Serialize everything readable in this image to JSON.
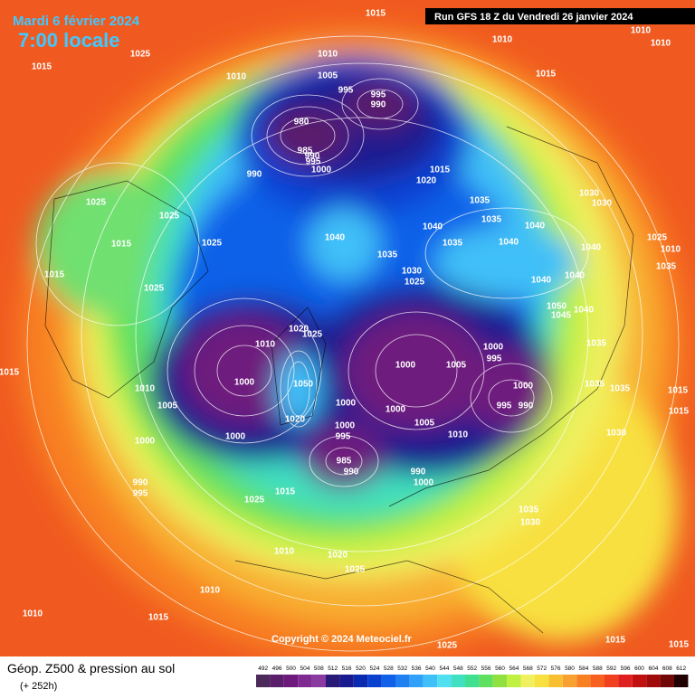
{
  "header": {
    "date": "Mardi 6 février 2024",
    "time": "7:00 locale",
    "run": "Run GFS 18 Z du Vendredi 26 janvier 2024",
    "copyright": "Copyright © 2024 Meteociel.fr"
  },
  "footer": {
    "title": "Géop. Z500 & pression au sol",
    "lead": "(+ 252h)"
  },
  "legend": {
    "levels": [
      492,
      496,
      500,
      504,
      508,
      512,
      516,
      520,
      524,
      528,
      532,
      536,
      540,
      544,
      548,
      552,
      556,
      560,
      564,
      568,
      572,
      576,
      580,
      584,
      588,
      592,
      596,
      600,
      604,
      608,
      612
    ],
    "colors": [
      "#4b2a5a",
      "#5b1e6b",
      "#6e1a7d",
      "#7e2a90",
      "#8a3aa0",
      "#2a1a78",
      "#1a1a90",
      "#0a2ab0",
      "#0a40d0",
      "#1060e8",
      "#2080f0",
      "#30a0f8",
      "#40c0f8",
      "#50e0f0",
      "#40e0c0",
      "#40e090",
      "#60e060",
      "#90e040",
      "#c0f040",
      "#f0f060",
      "#f8e040",
      "#f8c030",
      "#f8a030",
      "#f88020",
      "#f86020",
      "#f04020",
      "#e02020",
      "#c01010",
      "#a00a0a",
      "#700808",
      "#200000"
    ]
  },
  "isobar_labels": [
    "1015",
    "1010",
    "1010",
    "1010",
    "1015",
    "1025",
    "1010",
    "1010",
    "1015",
    "1005",
    "995",
    "995",
    "990",
    "980",
    "985",
    "990",
    "995",
    "1000",
    "990",
    "1015",
    "1020",
    "1030",
    "1030",
    "1025",
    "1025",
    "1035",
    "1035",
    "1040",
    "1040",
    "1025",
    "1015",
    "1025",
    "1040",
    "1040",
    "1035",
    "1035",
    "1040",
    "1010",
    "1035",
    "1015",
    "1030",
    "1025",
    "1040",
    "1040",
    "1025",
    "1050",
    "1045",
    "1040",
    "1020",
    "1025",
    "1010",
    "1000",
    "995",
    "1035",
    "1005",
    "1000",
    "1000",
    "1050",
    "1000",
    "990",
    "995",
    "1015",
    "1010",
    "1035",
    "1035",
    "1015",
    "1005",
    "1000",
    "1000",
    "1005",
    "1020",
    "1015",
    "1000",
    "995",
    "1000",
    "1010",
    "1030",
    "1000",
    "985",
    "990",
    "990",
    "1000",
    "990",
    "995",
    "1015",
    "1025",
    "1035",
    "1030",
    "1010",
    "1020",
    "1025",
    "1010",
    "1010",
    "1015",
    "1025",
    "1015",
    "1015"
  ]
}
